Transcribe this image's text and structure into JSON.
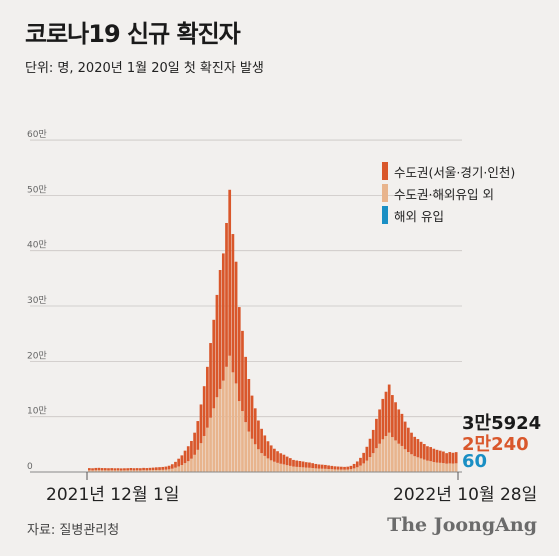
{
  "title": "코로나19 신규 확진자",
  "subtitle": "단위: 명, 2020년 1월 20일 첫 확진자 발생",
  "source": "자료: 질병관리청",
  "brand": "The JoongAng",
  "colors": {
    "capital": "#d9572b",
    "non_capital": "#e8b48d",
    "overseas": "#1a8fc4",
    "axis": "#999999"
  },
  "legend": [
    {
      "label": "수도권(서울·경기·인천)",
      "color": "#d9572b"
    },
    {
      "label": "수도권·해외유입 외",
      "color": "#e8b48d"
    },
    {
      "label": "해외 유입",
      "color": "#1a8fc4"
    }
  ],
  "callouts": {
    "total": "3만5924",
    "capital": "2만240",
    "overseas": "60"
  },
  "x_start_label": "2021년 12월 1일",
  "x_end_label": "2022년 10월 28일",
  "chart_data": {
    "type": "bar",
    "stacked": true,
    "x_range": [
      "2021-12-01",
      "2022-10-28"
    ],
    "ylim": [
      0,
      620000
    ],
    "yticks": [
      0,
      100000,
      200000,
      300000,
      400000,
      500000,
      600000
    ],
    "ytick_labels": [
      "0",
      "10만",
      "20만",
      "30만",
      "40만",
      "50만",
      "60만"
    ],
    "series": [
      {
        "name": "수도권(서울·경기·인천)",
        "values": [
          4000,
          3800,
          4200,
          4300,
          4100,
          4000,
          3900,
          4000,
          3800,
          3900,
          3700,
          3800,
          3900,
          4100,
          3900,
          4000,
          3900,
          4200,
          4100,
          4300,
          4500,
          4800,
          5000,
          5200,
          5600,
          6500,
          8000,
          10500,
          14000,
          17500,
          22500,
          27000,
          32000,
          40000,
          52000,
          70000,
          90000,
          110000,
          135000,
          160000,
          185000,
          215000,
          230000,
          260000,
          300000,
          250000,
          220000,
          170000,
          145000,
          118000,
          95000,
          78000,
          65000,
          52000,
          44000,
          37000,
          31000,
          27000,
          23500,
          21000,
          19000,
          17500,
          15500,
          14000,
          12000,
          11500,
          11000,
          10500,
          9800,
          9500,
          8800,
          8000,
          7500,
          7300,
          7000,
          6500,
          6000,
          5600,
          5400,
          5200,
          5000,
          5200,
          6000,
          8000,
          10500,
          14000,
          19000,
          25000,
          33000,
          42000,
          53000,
          62000,
          73000,
          80000,
          87000,
          76000,
          69000,
          62000,
          58000,
          50000,
          44000,
          39000,
          35000,
          33000,
          30000,
          28000,
          26000,
          25500,
          24000,
          23000,
          22000,
          21000,
          19000,
          20500,
          19500,
          20240
        ]
      },
      {
        "name": "수도권·해외유입 외",
        "values": [
          3000,
          2900,
          3100,
          3200,
          3000,
          3000,
          2900,
          3000,
          2900,
          2900,
          2800,
          2900,
          2900,
          3100,
          2900,
          3000,
          2900,
          3200,
          3000,
          3200,
          3400,
          3600,
          3700,
          3900,
          4200,
          4800,
          6000,
          7800,
          10000,
          12500,
          16000,
          19500,
          24000,
          31000,
          40000,
          52000,
          65000,
          80000,
          98000,
          115000,
          135000,
          150000,
          165000,
          190000,
          210000,
          180000,
          160000,
          128000,
          110000,
          90000,
          73000,
          60000,
          50000,
          41000,
          34000,
          29000,
          24500,
          21000,
          18500,
          16500,
          14800,
          13700,
          12300,
          11000,
          9800,
          9200,
          8800,
          8400,
          7900,
          7600,
          7100,
          6500,
          6100,
          5900,
          5700,
          5300,
          5000,
          4600,
          4400,
          4300,
          4200,
          4400,
          5000,
          6500,
          8500,
          11500,
          15500,
          20500,
          27000,
          34000,
          43000,
          51000,
          59000,
          65000,
          71000,
          63000,
          57000,
          51000,
          47000,
          41000,
          36000,
          32000,
          28500,
          26500,
          24500,
          22500,
          20500,
          19500,
          18000,
          17000,
          16500,
          16000,
          15000,
          15500,
          15200,
          15624
        ]
      },
      {
        "name": "해외 유입",
        "values": [
          30,
          30,
          30,
          30,
          30,
          30,
          30,
          30,
          30,
          30,
          30,
          30,
          30,
          30,
          30,
          30,
          30,
          30,
          30,
          30,
          30,
          30,
          30,
          30,
          30,
          40,
          40,
          40,
          50,
          50,
          60,
          60,
          70,
          70,
          80,
          90,
          100,
          100,
          110,
          110,
          110,
          120,
          120,
          120,
          130,
          120,
          120,
          110,
          110,
          100,
          100,
          90,
          90,
          80,
          80,
          70,
          70,
          70,
          60,
          60,
          60,
          60,
          60,
          60,
          60,
          60,
          60,
          60,
          60,
          60,
          60,
          60,
          60,
          60,
          60,
          60,
          60,
          60,
          60,
          60,
          60,
          60,
          60,
          60,
          60,
          70,
          70,
          70,
          80,
          80,
          80,
          80,
          90,
          90,
          90,
          90,
          80,
          80,
          80,
          80,
          70,
          70,
          70,
          70,
          70,
          60,
          60,
          60,
          60,
          60,
          60,
          60,
          60,
          60,
          60,
          60
        ]
      }
    ]
  }
}
